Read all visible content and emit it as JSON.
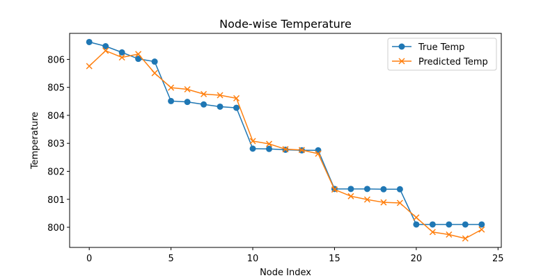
{
  "chart_data": {
    "type": "line",
    "title": "Node-wise Temperature",
    "xlabel": "Node Index",
    "ylabel": "Temperature",
    "x": [
      0,
      1,
      2,
      3,
      4,
      5,
      6,
      7,
      8,
      9,
      10,
      11,
      12,
      13,
      14,
      15,
      16,
      17,
      18,
      19,
      20,
      21,
      22,
      23,
      24
    ],
    "xlim": [
      -1.2,
      25.2
    ],
    "ylim": [
      799.28,
      806.93
    ],
    "xticks": [
      0,
      5,
      10,
      15,
      20,
      25
    ],
    "yticks": [
      800,
      801,
      802,
      803,
      804,
      805,
      806
    ],
    "grid": false,
    "legend_position": "top-right",
    "series": [
      {
        "name": "True Temp",
        "color": "#1f77b4",
        "marker": "circle",
        "values": [
          806.62,
          806.47,
          806.25,
          806.02,
          805.92,
          804.51,
          804.48,
          804.39,
          804.31,
          804.27,
          802.81,
          802.8,
          802.77,
          802.75,
          802.75,
          801.37,
          801.37,
          801.37,
          801.36,
          801.36,
          800.1,
          800.1,
          800.1,
          800.1,
          800.1
        ]
      },
      {
        "name": "Predicted Temp",
        "color": "#ff7f0e",
        "marker": "x",
        "values": [
          805.76,
          806.31,
          806.07,
          806.19,
          805.51,
          804.99,
          804.93,
          804.76,
          804.72,
          804.61,
          803.08,
          802.98,
          802.79,
          802.76,
          802.63,
          801.35,
          801.11,
          800.99,
          800.89,
          800.87,
          800.35,
          799.83,
          799.74,
          799.6,
          799.92
        ]
      }
    ]
  }
}
